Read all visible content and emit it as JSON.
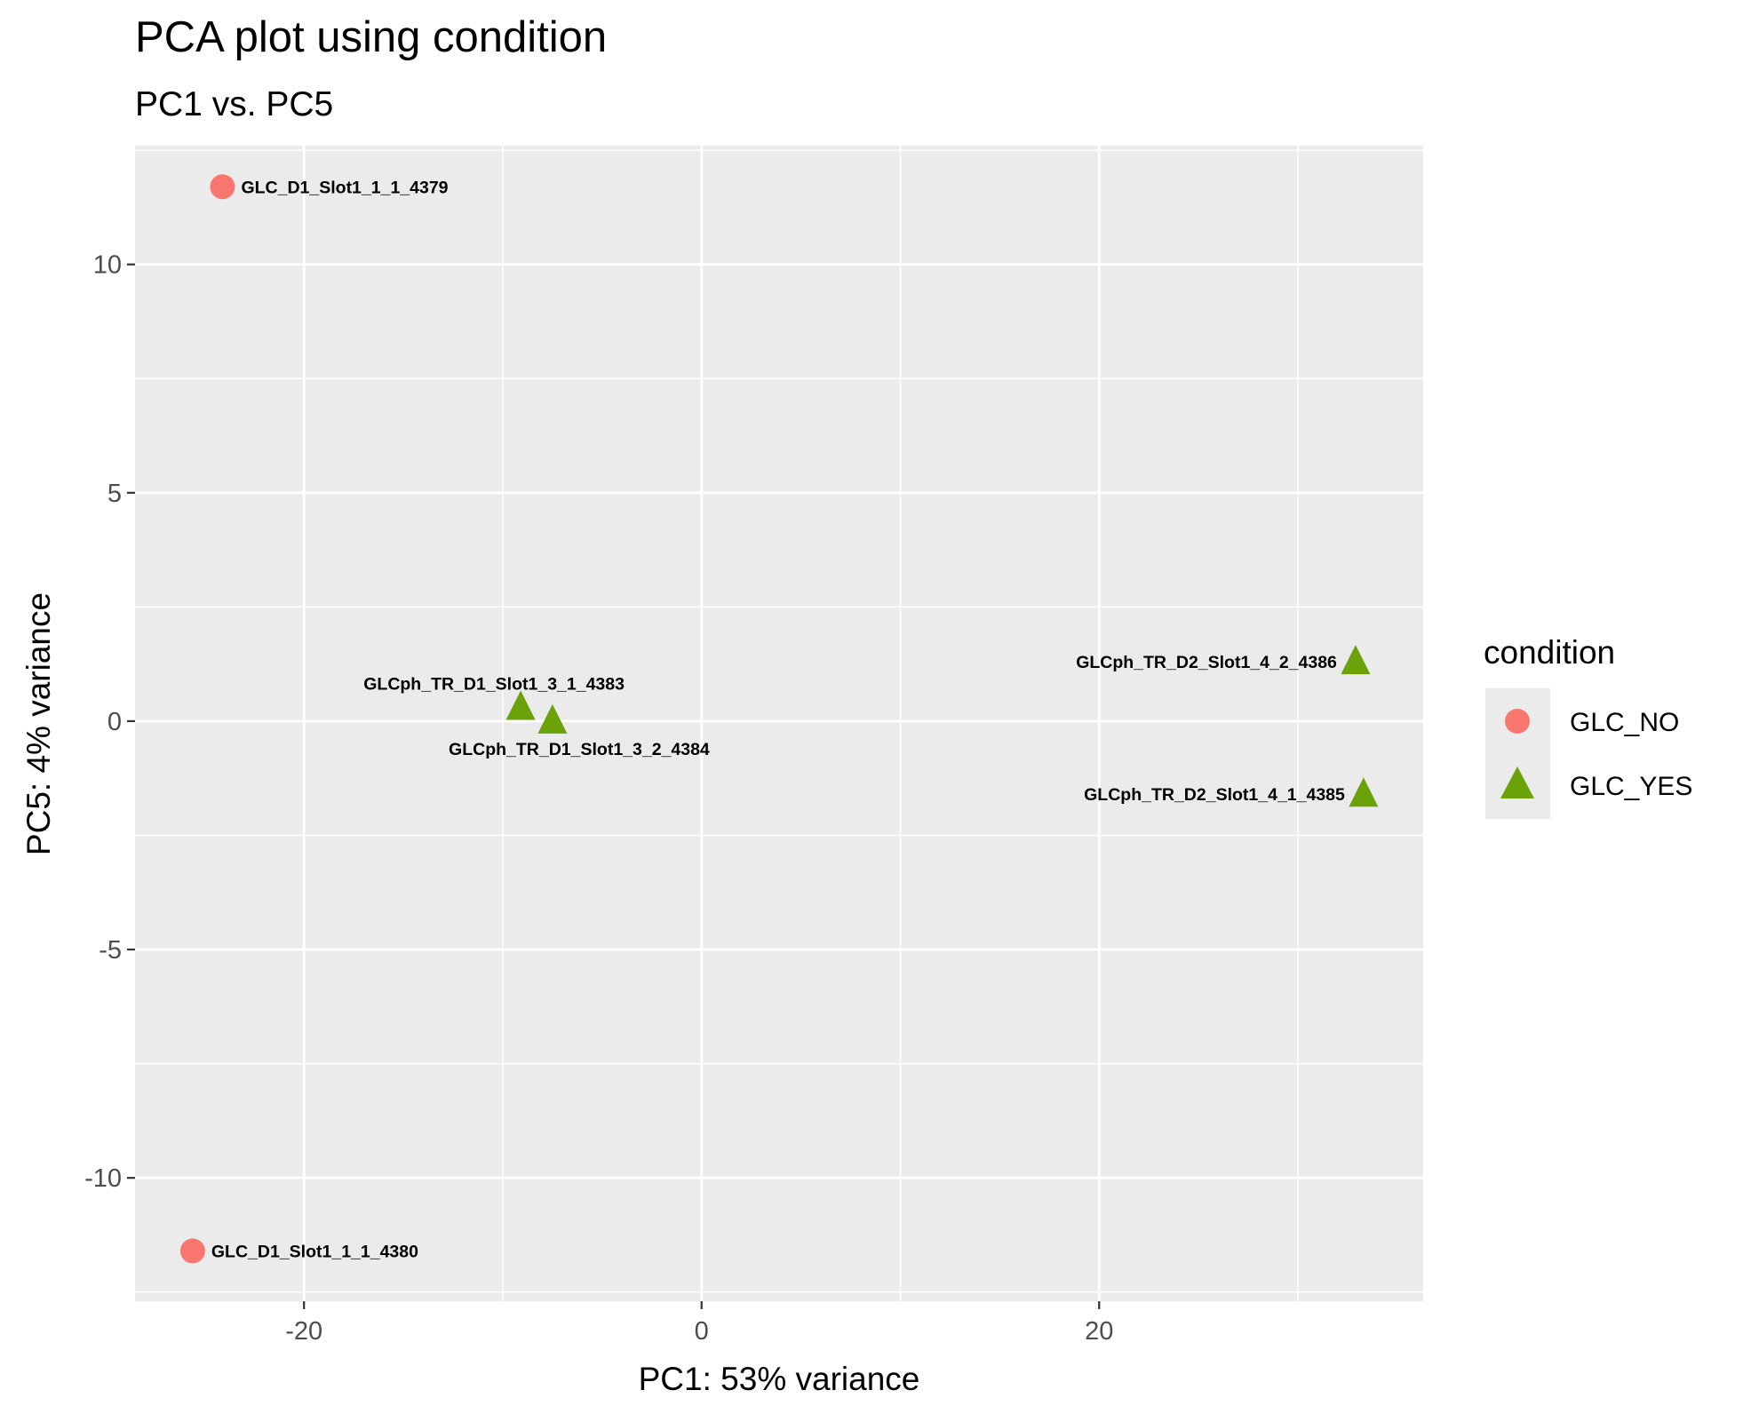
{
  "chart_data": {
    "type": "scatter",
    "title": "PCA plot using condition",
    "subtitle": "PC1 vs. PC5",
    "xlabel": "PC1: 53% variance",
    "ylabel": "PC5: 4% variance",
    "xlim": [
      -28.5,
      36.3
    ],
    "ylim": [
      -12.7,
      12.6
    ],
    "x_ticks": [
      -20,
      0,
      20
    ],
    "x_tick_labels": [
      "-20",
      "0",
      "20"
    ],
    "y_ticks": [
      -10,
      -5,
      0,
      5,
      10
    ],
    "y_tick_labels": [
      "-10",
      "-5",
      "0",
      "5",
      "10"
    ],
    "grid": true,
    "legend": {
      "title": "condition",
      "position": "right",
      "entries": [
        {
          "label": "GLC_NO",
          "shape": "circle",
          "color": "#F8766D"
        },
        {
          "label": "GLC_YES",
          "shape": "triangle",
          "color": "#6BA20A"
        }
      ]
    },
    "series": [
      {
        "name": "GLC_NO",
        "shape": "circle",
        "color": "#F8766D",
        "points": [
          {
            "x": -24.1,
            "y": 11.7,
            "label": "GLC_D1_Slot1_1_1_4379",
            "label_side": "right"
          },
          {
            "x": -25.6,
            "y": -11.6,
            "label": "GLC_D1_Slot1_1_1_4380",
            "label_side": "right"
          }
        ]
      },
      {
        "name": "GLC_YES",
        "shape": "triangle",
        "color": "#6BA20A",
        "points": [
          {
            "x": -9.1,
            "y": 0.3,
            "label": "GLCph_TR_D1_Slot1_3_1_4383",
            "label_side": "above"
          },
          {
            "x": -7.5,
            "y": 0.0,
            "label": "GLCph_TR_D1_Slot1_3_2_4384",
            "label_side": "below"
          },
          {
            "x": 32.9,
            "y": 1.3,
            "label": "GLCph_TR_D2_Slot1_4_2_4386",
            "label_side": "left"
          },
          {
            "x": 33.3,
            "y": -1.6,
            "label": "GLCph_TR_D2_Slot1_4_1_4385",
            "label_side": "left"
          }
        ]
      }
    ]
  }
}
